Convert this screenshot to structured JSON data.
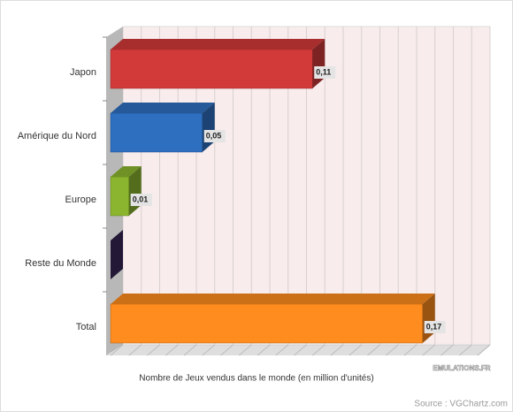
{
  "chart_data": {
    "type": "bar3d",
    "categories": [
      "Japon",
      "Amérique du Nord",
      "Europe",
      "Reste du Monde",
      "Total"
    ],
    "series": [
      {
        "name": null,
        "values": [
          0.11,
          0.05,
          0.01,
          0,
          0.17
        ],
        "value_labels": [
          "0,11",
          "0,05",
          "0,01",
          null,
          "0,17"
        ],
        "colors": [
          "#d23a3a",
          "#2e6fc0",
          "#8bb52e",
          "#3b2a5c",
          "#ff8c1e"
        ]
      }
    ],
    "xlim": [
      0,
      0.2
    ],
    "xlabel": "Nombre de Jeux vendus dans le monde (en million d'unités)",
    "logo": "EMULATIONS.FR",
    "source": "Source : VGChartz.com"
  }
}
